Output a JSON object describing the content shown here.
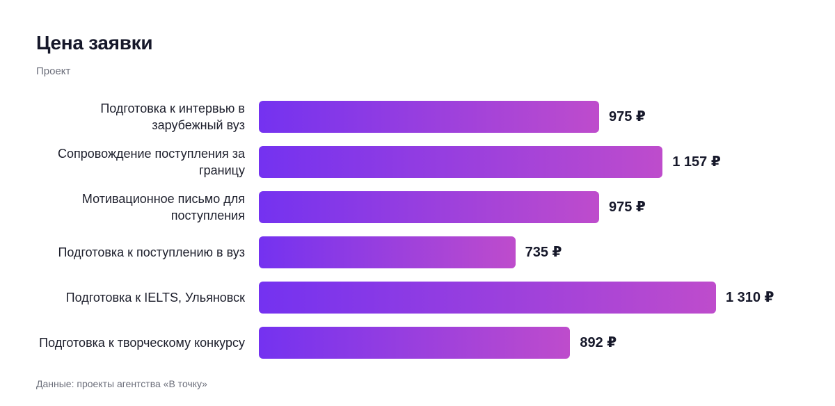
{
  "chart_data": {
    "type": "bar",
    "orientation": "horizontal",
    "title": "Цена заявки",
    "subtitle": "Проект",
    "source": "Данные: проекты агентства «В точку»",
    "currency": "₽",
    "categories": [
      "Подготовка к интервью в зарубежный вуз",
      "Сопровождение поступления за границу",
      "Мотивационное письмо для поступления",
      "Подготовка к поступлению в вуз",
      "Подготовка к IELTS, Ульяновск",
      "Подготовка к творческому конкурсу"
    ],
    "values": [
      975,
      1157,
      975,
      735,
      1310,
      892
    ],
    "value_labels": [
      "975 ₽",
      "1 157 ₽",
      "975 ₽",
      "735 ₽",
      "1 310 ₽",
      "892 ₽"
    ],
    "xlim": [
      0,
      1400
    ],
    "grid": false,
    "legend": "none",
    "colors": {
      "bar_start": "#7432f0",
      "bar_end": "#be4ccc"
    }
  }
}
